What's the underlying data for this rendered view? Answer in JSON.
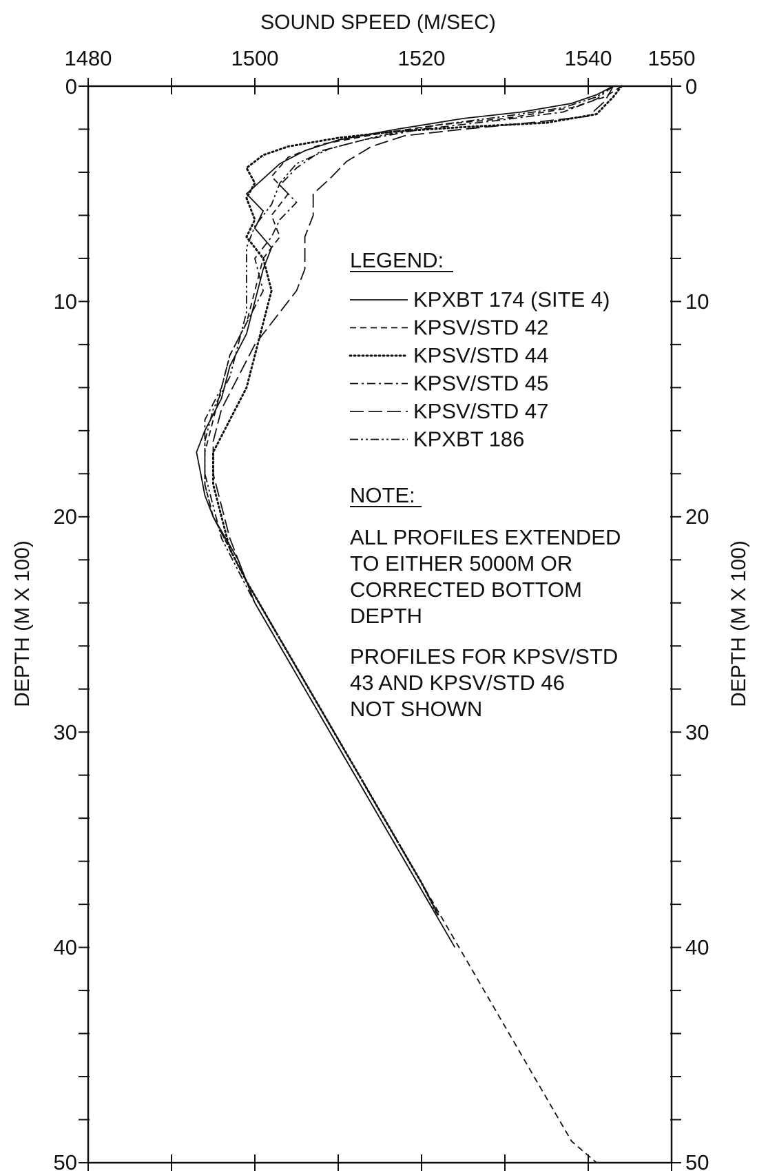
{
  "chart_data": {
    "type": "line",
    "title": "",
    "xlabel": "SOUND SPEED (M/SEC)",
    "ylabel": "DEPTH (M X 100)",
    "ylabel_right": "DEPTH (M X 100)",
    "xlim": [
      1480,
      1550
    ],
    "ylim": [
      0,
      50
    ],
    "y_inverted": true,
    "x_axis_position": "top",
    "x_ticks": [
      1480,
      1500,
      1520,
      1540,
      1550
    ],
    "x_tick_labels": [
      "1480",
      "1500",
      "1520",
      "1540",
      "1550"
    ],
    "y_ticks": [
      0,
      10,
      20,
      30,
      40,
      50
    ],
    "y_tick_labels": [
      "0",
      "10",
      "20",
      "30",
      "40",
      "50"
    ],
    "grid": false,
    "legend_title": "LEGEND:",
    "legend_placement": "center-right",
    "series": [
      {
        "name": "KPXBT 174 (SITE 4)",
        "style": "solid",
        "points": [
          [
            1543,
            0
          ],
          [
            1541,
            0.4
          ],
          [
            1538,
            0.8
          ],
          [
            1532,
            1.2
          ],
          [
            1525,
            1.5
          ],
          [
            1517,
            2
          ],
          [
            1510,
            2.5
          ],
          [
            1506,
            3
          ],
          [
            1503,
            3.6
          ],
          [
            1501,
            4.3
          ],
          [
            1499,
            5
          ],
          [
            1501,
            5.8
          ],
          [
            1500,
            6.6
          ],
          [
            1502,
            7.5
          ],
          [
            1501,
            8.5
          ],
          [
            1500,
            10
          ],
          [
            1499,
            11.5
          ],
          [
            1497,
            13
          ],
          [
            1496,
            14.5
          ],
          [
            1494,
            16
          ],
          [
            1493,
            17
          ],
          [
            1493.5,
            18
          ],
          [
            1494,
            19
          ],
          [
            1495,
            20
          ],
          [
            1496.5,
            21
          ],
          [
            1498,
            22
          ],
          [
            1500,
            24
          ],
          [
            1503,
            26
          ],
          [
            1506,
            28
          ],
          [
            1509,
            30
          ],
          [
            1512,
            32
          ],
          [
            1515,
            34
          ],
          [
            1518,
            36
          ],
          [
            1521,
            38
          ],
          [
            1524,
            40
          ]
        ]
      },
      {
        "name": "KPSV/STD 42",
        "style": "dashed",
        "points": [
          [
            1544,
            0
          ],
          [
            1542,
            0.5
          ],
          [
            1538,
            1
          ],
          [
            1530,
            1.5
          ],
          [
            1522,
            1.8
          ],
          [
            1515,
            2.2
          ],
          [
            1508,
            2.7
          ],
          [
            1504,
            3.3
          ],
          [
            1502,
            4.2
          ],
          [
            1504,
            5
          ],
          [
            1502,
            6
          ],
          [
            1503,
            7
          ],
          [
            1501,
            8
          ],
          [
            1500,
            9.5
          ],
          [
            1499,
            11
          ],
          [
            1497,
            12.5
          ],
          [
            1496,
            14
          ],
          [
            1495,
            15.5
          ],
          [
            1494,
            17
          ],
          [
            1494,
            18.5
          ],
          [
            1495,
            20
          ],
          [
            1497,
            21.5
          ],
          [
            1499,
            23
          ],
          [
            1502,
            25
          ],
          [
            1505,
            27
          ],
          [
            1508,
            29
          ],
          [
            1511,
            31
          ],
          [
            1514,
            33
          ],
          [
            1517,
            35
          ],
          [
            1520,
            37
          ],
          [
            1523,
            39
          ],
          [
            1526,
            41
          ],
          [
            1529,
            43
          ],
          [
            1532,
            45
          ],
          [
            1535,
            47
          ],
          [
            1538,
            49
          ],
          [
            1541,
            50
          ]
        ]
      },
      {
        "name": "KPSV/STD 44",
        "style": "dotted",
        "points": [
          [
            1544,
            0
          ],
          [
            1543,
            0.5
          ],
          [
            1541,
            1.3
          ],
          [
            1535,
            1.7
          ],
          [
            1525,
            1.9
          ],
          [
            1517,
            2.1
          ],
          [
            1510,
            2.4
          ],
          [
            1504,
            2.8
          ],
          [
            1501,
            3.2
          ],
          [
            1499,
            3.8
          ],
          [
            1500,
            4.5
          ],
          [
            1499,
            5.2
          ],
          [
            1500,
            6.2
          ],
          [
            1499,
            7
          ],
          [
            1501,
            8
          ],
          [
            1502,
            9.5
          ],
          [
            1501,
            11
          ],
          [
            1500,
            12.5
          ],
          [
            1499,
            14
          ],
          [
            1497,
            15.5
          ],
          [
            1495,
            17
          ],
          [
            1495,
            18.5
          ],
          [
            1496,
            20
          ],
          [
            1497,
            21.5
          ],
          [
            1499,
            23
          ],
          [
            1502,
            25
          ],
          [
            1505,
            27
          ],
          [
            1508,
            29
          ],
          [
            1511,
            31
          ],
          [
            1514,
            33
          ],
          [
            1517,
            35
          ],
          [
            1520,
            37
          ],
          [
            1522,
            38.5
          ]
        ]
      },
      {
        "name": "KPSV/STD 45",
        "style": "dashdot",
        "points": [
          [
            1543,
            0
          ],
          [
            1541,
            0.6
          ],
          [
            1537,
            1.2
          ],
          [
            1529,
            1.6
          ],
          [
            1520,
            2
          ],
          [
            1513,
            2.5
          ],
          [
            1508,
            3
          ],
          [
            1505,
            3.8
          ],
          [
            1503,
            4.6
          ],
          [
            1505,
            5.4
          ],
          [
            1503,
            6.2
          ],
          [
            1502,
            7
          ],
          [
            1500,
            8
          ],
          [
            1501,
            9.5
          ],
          [
            1499,
            11
          ],
          [
            1497,
            12.5
          ],
          [
            1496,
            14
          ],
          [
            1494,
            15.5
          ],
          [
            1494,
            17
          ],
          [
            1494,
            18.5
          ],
          [
            1495,
            20
          ],
          [
            1497,
            21.5
          ],
          [
            1499,
            23
          ],
          [
            1502,
            25
          ],
          [
            1505,
            27
          ],
          [
            1508,
            29
          ],
          [
            1511,
            31
          ],
          [
            1514,
            33
          ],
          [
            1517,
            35
          ],
          [
            1520,
            37
          ],
          [
            1522,
            38.5
          ]
        ]
      },
      {
        "name": "KPSV/STD 47",
        "style": "longdash",
        "points": [
          [
            1543,
            0
          ],
          [
            1542,
            0.7
          ],
          [
            1540,
            1.4
          ],
          [
            1533,
            1.7
          ],
          [
            1525,
            2
          ],
          [
            1518,
            2.3
          ],
          [
            1514,
            2.8
          ],
          [
            1511,
            3.5
          ],
          [
            1509,
            4.3
          ],
          [
            1507,
            5
          ],
          [
            1507,
            6
          ],
          [
            1506,
            7
          ],
          [
            1506,
            8.5
          ],
          [
            1505,
            9.5
          ],
          [
            1503,
            10.5
          ],
          [
            1500,
            12
          ],
          [
            1498,
            13.5
          ],
          [
            1496,
            15
          ],
          [
            1495,
            16.5
          ],
          [
            1495,
            18
          ],
          [
            1496,
            19.5
          ],
          [
            1497,
            21
          ],
          [
            1499,
            23
          ],
          [
            1502,
            25
          ],
          [
            1505,
            27
          ],
          [
            1508,
            29
          ],
          [
            1511,
            31
          ],
          [
            1514,
            33
          ],
          [
            1517,
            35
          ],
          [
            1520,
            37
          ],
          [
            1522,
            38.5
          ]
        ]
      },
      {
        "name": "KPXBT 186",
        "style": "dashdotdot",
        "points": [
          [
            1543,
            0
          ],
          [
            1541,
            0.5
          ],
          [
            1537,
            1
          ],
          [
            1530,
            1.4
          ],
          [
            1522,
            1.8
          ],
          [
            1515,
            2.3
          ],
          [
            1509,
            2.9
          ],
          [
            1505,
            3.6
          ],
          [
            1503,
            4.5
          ],
          [
            1502,
            5.5
          ],
          [
            1500,
            6.5
          ],
          [
            1499,
            7.5
          ],
          [
            1499,
            9
          ],
          [
            1499,
            10.5
          ],
          [
            1498,
            12
          ],
          [
            1497,
            13.5
          ],
          [
            1495,
            15
          ],
          [
            1494,
            16.5
          ],
          [
            1494,
            18
          ],
          [
            1495,
            19.5
          ],
          [
            1496,
            21
          ],
          [
            1498,
            22.5
          ],
          [
            1500,
            24
          ],
          [
            1503,
            26
          ],
          [
            1506,
            28
          ],
          [
            1509,
            30
          ],
          [
            1512,
            32
          ],
          [
            1515,
            34
          ],
          [
            1518,
            36
          ],
          [
            1521,
            38
          ],
          [
            1522,
            38.5
          ]
        ]
      }
    ]
  },
  "legend": {
    "title": "LEGEND:",
    "items": [
      "KPXBT 174 (SITE 4)",
      "KPSV/STD 42",
      "KPSV/STD 44",
      "KPSV/STD 45",
      "KPSV/STD 47",
      "KPXBT 186"
    ]
  },
  "note": {
    "title": "NOTE:",
    "lines": [
      "ALL PROFILES EXTENDED",
      "TO EITHER 5000M OR",
      "CORRECTED BOTTOM",
      "DEPTH",
      "PROFILES FOR KPSV/STD",
      "43 AND KPSV/STD 46",
      "NOT SHOWN"
    ]
  }
}
